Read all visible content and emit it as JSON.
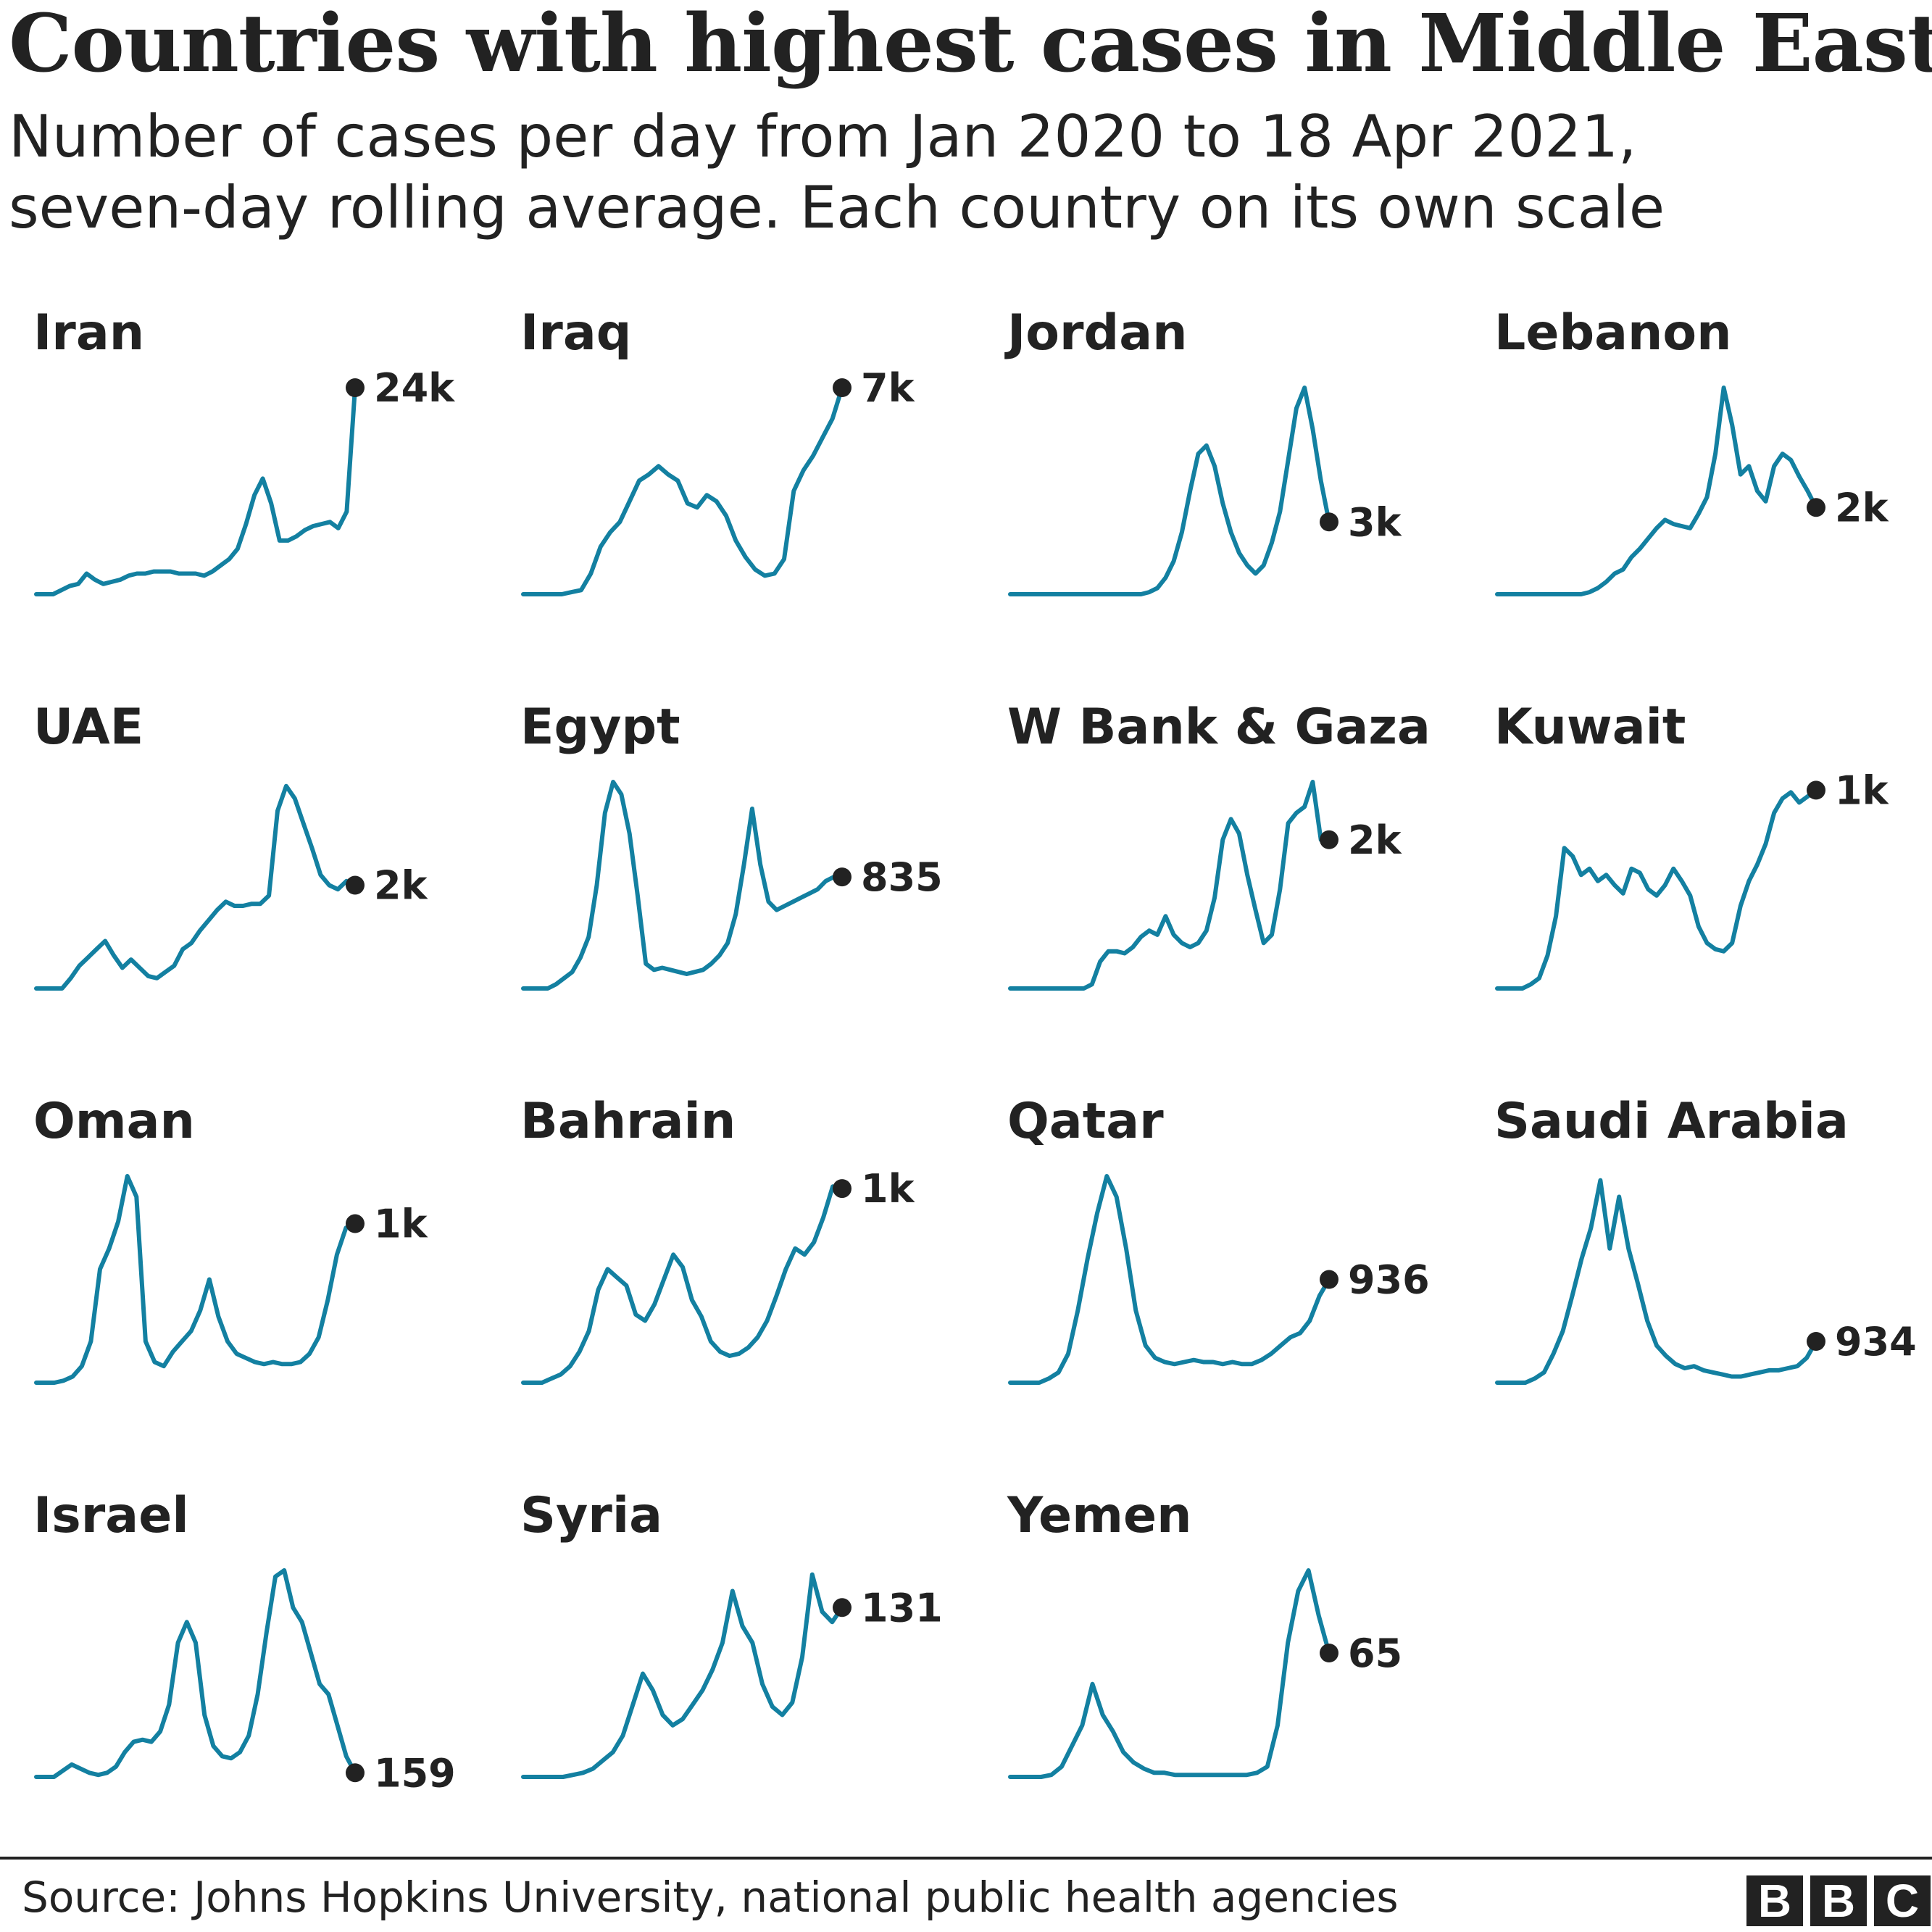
{
  "title": "Countries with highest cases in Middle East",
  "subtitle_lines": [
    "Number of cases per day from Jan 2020 to 18 Apr 2021,",
    "seven-day rolling average. Each country on its own scale"
  ],
  "source": "Source: Johns Hopkins University, national public health agencies",
  "logo": [
    "B",
    "B",
    "C"
  ],
  "colors": {
    "line": "#1380A1",
    "dot": "#222222",
    "text": "#222222"
  },
  "chart_data": {
    "type": "line",
    "x_range": [
      "Jan 2020",
      "18 Apr 2021"
    ],
    "value_units": "relative to each country's own peak (1.0 = peak)",
    "panels": [
      {
        "country": "Iran",
        "last_label": "24k",
        "values": [
          0,
          0,
          0,
          0.02,
          0.04,
          0.05,
          0.1,
          0.07,
          0.05,
          0.06,
          0.07,
          0.09,
          0.1,
          0.1,
          0.11,
          0.11,
          0.11,
          0.1,
          0.1,
          0.1,
          0.09,
          0.11,
          0.14,
          0.17,
          0.22,
          0.34,
          0.48,
          0.56,
          0.44,
          0.26,
          0.26,
          0.28,
          0.31,
          0.33,
          0.34,
          0.35,
          0.32,
          0.4,
          1.0
        ]
      },
      {
        "country": "Iraq",
        "last_label": "7k",
        "values": [
          0,
          0,
          0,
          0,
          0,
          0.01,
          0.02,
          0.1,
          0.23,
          0.3,
          0.35,
          0.45,
          0.55,
          0.58,
          0.62,
          0.58,
          0.55,
          0.44,
          0.42,
          0.48,
          0.45,
          0.38,
          0.26,
          0.18,
          0.12,
          0.09,
          0.1,
          0.17,
          0.5,
          0.6,
          0.67,
          0.76,
          0.85,
          1.0
        ]
      },
      {
        "country": "Jordan",
        "last_label": "3k",
        "values": [
          0,
          0,
          0,
          0,
          0,
          0,
          0,
          0,
          0,
          0,
          0,
          0,
          0,
          0,
          0,
          0,
          0,
          0.01,
          0.03,
          0.08,
          0.16,
          0.3,
          0.5,
          0.68,
          0.72,
          0.62,
          0.44,
          0.3,
          0.2,
          0.14,
          0.1,
          0.14,
          0.25,
          0.4,
          0.65,
          0.9,
          1.0,
          0.8,
          0.55,
          0.35
        ]
      },
      {
        "country": "Lebanon",
        "last_label": "2k",
        "values": [
          0,
          0,
          0,
          0,
          0,
          0,
          0,
          0,
          0,
          0,
          0,
          0.01,
          0.03,
          0.06,
          0.1,
          0.12,
          0.18,
          0.22,
          0.27,
          0.32,
          0.36,
          0.34,
          0.33,
          0.32,
          0.39,
          0.47,
          0.68,
          1.0,
          0.82,
          0.58,
          0.62,
          0.5,
          0.45,
          0.62,
          0.68,
          0.65,
          0.57,
          0.5,
          0.42
        ]
      },
      {
        "country": "UAE",
        "last_label": "2k",
        "values": [
          0,
          0,
          0,
          0,
          0.05,
          0.11,
          0.15,
          0.19,
          0.23,
          0.16,
          0.1,
          0.14,
          0.1,
          0.06,
          0.05,
          0.08,
          0.11,
          0.19,
          0.22,
          0.28,
          0.33,
          0.38,
          0.42,
          0.4,
          0.4,
          0.41,
          0.41,
          0.45,
          0.86,
          0.98,
          0.92,
          0.8,
          0.68,
          0.55,
          0.5,
          0.48,
          0.52,
          0.5
        ]
      },
      {
        "country": "Egypt",
        "last_label": "835",
        "values": [
          0,
          0,
          0,
          0,
          0.02,
          0.05,
          0.08,
          0.15,
          0.25,
          0.5,
          0.85,
          1.0,
          0.94,
          0.75,
          0.45,
          0.12,
          0.09,
          0.1,
          0.09,
          0.08,
          0.07,
          0.08,
          0.09,
          0.12,
          0.16,
          0.22,
          0.36,
          0.6,
          0.87,
          0.6,
          0.42,
          0.38,
          0.4,
          0.42,
          0.44,
          0.46,
          0.48,
          0.52,
          0.54,
          0.54
        ]
      },
      {
        "country": "W Bank & Gaza",
        "last_label": "2k",
        "values": [
          0,
          0,
          0,
          0,
          0,
          0,
          0,
          0,
          0,
          0,
          0.02,
          0.13,
          0.18,
          0.18,
          0.17,
          0.2,
          0.25,
          0.28,
          0.26,
          0.35,
          0.26,
          0.22,
          0.2,
          0.22,
          0.28,
          0.44,
          0.72,
          0.82,
          0.75,
          0.55,
          0.38,
          0.22,
          0.26,
          0.48,
          0.8,
          0.85,
          0.88,
          1.0,
          0.72,
          0.72
        ]
      },
      {
        "country": "Kuwait",
        "last_label": "1k",
        "values": [
          0,
          0,
          0,
          0,
          0.02,
          0.05,
          0.16,
          0.35,
          0.68,
          0.64,
          0.55,
          0.58,
          0.52,
          0.55,
          0.5,
          0.46,
          0.58,
          0.56,
          0.48,
          0.45,
          0.5,
          0.58,
          0.52,
          0.45,
          0.3,
          0.22,
          0.19,
          0.18,
          0.22,
          0.4,
          0.52,
          0.6,
          0.7,
          0.85,
          0.92,
          0.95,
          0.9,
          0.93,
          0.96
        ]
      },
      {
        "country": "Oman",
        "last_label": "1k",
        "values": [
          0,
          0,
          0,
          0.01,
          0.03,
          0.08,
          0.2,
          0.55,
          0.65,
          0.78,
          1.0,
          0.9,
          0.2,
          0.1,
          0.08,
          0.15,
          0.2,
          0.25,
          0.35,
          0.5,
          0.32,
          0.2,
          0.14,
          0.12,
          0.1,
          0.09,
          0.1,
          0.09,
          0.09,
          0.1,
          0.14,
          0.22,
          0.4,
          0.62,
          0.75,
          0.77
        ]
      },
      {
        "country": "Bahrain",
        "last_label": "1k",
        "values": [
          0,
          0,
          0,
          0.02,
          0.04,
          0.08,
          0.15,
          0.25,
          0.45,
          0.55,
          0.51,
          0.47,
          0.33,
          0.3,
          0.38,
          0.5,
          0.62,
          0.56,
          0.4,
          0.32,
          0.2,
          0.15,
          0.13,
          0.14,
          0.17,
          0.22,
          0.3,
          0.42,
          0.55,
          0.65,
          0.62,
          0.68,
          0.8,
          0.95,
          0.94
        ]
      },
      {
        "country": "Qatar",
        "last_label": "936",
        "values": [
          0,
          0,
          0,
          0,
          0.02,
          0.05,
          0.14,
          0.35,
          0.6,
          0.82,
          1.0,
          0.9,
          0.65,
          0.35,
          0.18,
          0.12,
          0.1,
          0.09,
          0.1,
          0.11,
          0.1,
          0.1,
          0.09,
          0.1,
          0.09,
          0.09,
          0.11,
          0.14,
          0.18,
          0.22,
          0.24,
          0.3,
          0.42,
          0.5
        ]
      },
      {
        "country": "Saudi Arabia",
        "last_label": "934",
        "values": [
          0,
          0,
          0,
          0,
          0.02,
          0.05,
          0.14,
          0.25,
          0.42,
          0.6,
          0.75,
          0.98,
          0.65,
          0.9,
          0.65,
          0.48,
          0.3,
          0.18,
          0.13,
          0.09,
          0.07,
          0.08,
          0.06,
          0.05,
          0.04,
          0.03,
          0.03,
          0.04,
          0.05,
          0.06,
          0.06,
          0.07,
          0.08,
          0.12,
          0.2
        ]
      },
      {
        "country": "Israel",
        "last_label": "159",
        "values": [
          0,
          0,
          0,
          0.03,
          0.06,
          0.04,
          0.02,
          0.01,
          0.02,
          0.05,
          0.12,
          0.17,
          0.18,
          0.17,
          0.22,
          0.35,
          0.65,
          0.75,
          0.65,
          0.3,
          0.15,
          0.1,
          0.09,
          0.12,
          0.2,
          0.4,
          0.7,
          0.97,
          1.0,
          0.82,
          0.75,
          0.6,
          0.45,
          0.4,
          0.25,
          0.1,
          0.02
        ]
      },
      {
        "country": "Syria",
        "last_label": "131",
        "values": [
          0,
          0,
          0,
          0,
          0,
          0.01,
          0.02,
          0.04,
          0.08,
          0.12,
          0.2,
          0.35,
          0.5,
          0.42,
          0.3,
          0.25,
          0.28,
          0.35,
          0.42,
          0.52,
          0.65,
          0.9,
          0.73,
          0.65,
          0.45,
          0.34,
          0.3,
          0.36,
          0.58,
          0.98,
          0.8,
          0.75,
          0.82
        ]
      },
      {
        "country": "Yemen",
        "last_label": "65",
        "values": [
          0,
          0,
          0,
          0,
          0.01,
          0.05,
          0.15,
          0.25,
          0.45,
          0.3,
          0.22,
          0.12,
          0.07,
          0.04,
          0.02,
          0.02,
          0.01,
          0.01,
          0.01,
          0.01,
          0.01,
          0.01,
          0.01,
          0.01,
          0.02,
          0.05,
          0.25,
          0.65,
          0.9,
          1.0,
          0.78,
          0.6
        ]
      }
    ]
  }
}
